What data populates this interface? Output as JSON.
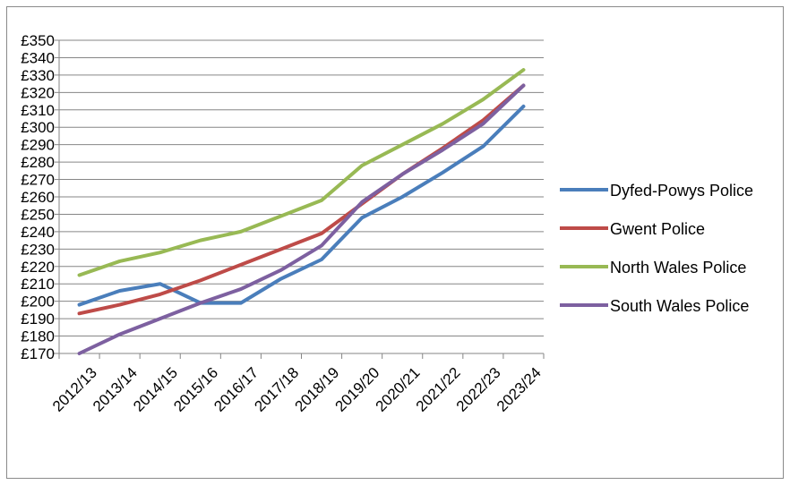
{
  "chart_data": {
    "type": "line",
    "title": "",
    "xlabel": "",
    "ylabel": "",
    "categories": [
      "2012/13",
      "2013/14",
      "2014/15",
      "2015/16",
      "2016/17",
      "2017/18",
      "2018/19",
      "2019/20",
      "2020/21",
      "2021/22",
      "2022/23",
      "2023/24"
    ],
    "ylim": [
      170,
      350
    ],
    "ytick_step": 10,
    "ytick_prefix": "£",
    "grid": true,
    "legend_position": "right",
    "series": [
      {
        "name": "Dyfed-Powys Police",
        "color": "#4a7ebb",
        "values": [
          198,
          206,
          210,
          199,
          199,
          213,
          224,
          248,
          260,
          274,
          289,
          312
        ]
      },
      {
        "name": "Gwent Police",
        "color": "#be4b48",
        "values": [
          193,
          198,
          204,
          212,
          221,
          230,
          239,
          256,
          273,
          288,
          304,
          324
        ]
      },
      {
        "name": "North Wales Police",
        "color": "#98b954",
        "values": [
          215,
          223,
          228,
          235,
          240,
          249,
          258,
          278,
          290,
          302,
          316,
          333
        ]
      },
      {
        "name": "South Wales Police",
        "color": "#7d60a0",
        "values": [
          170,
          181,
          190,
          199,
          207,
          218,
          232,
          257,
          273,
          287,
          302,
          324
        ]
      }
    ]
  }
}
